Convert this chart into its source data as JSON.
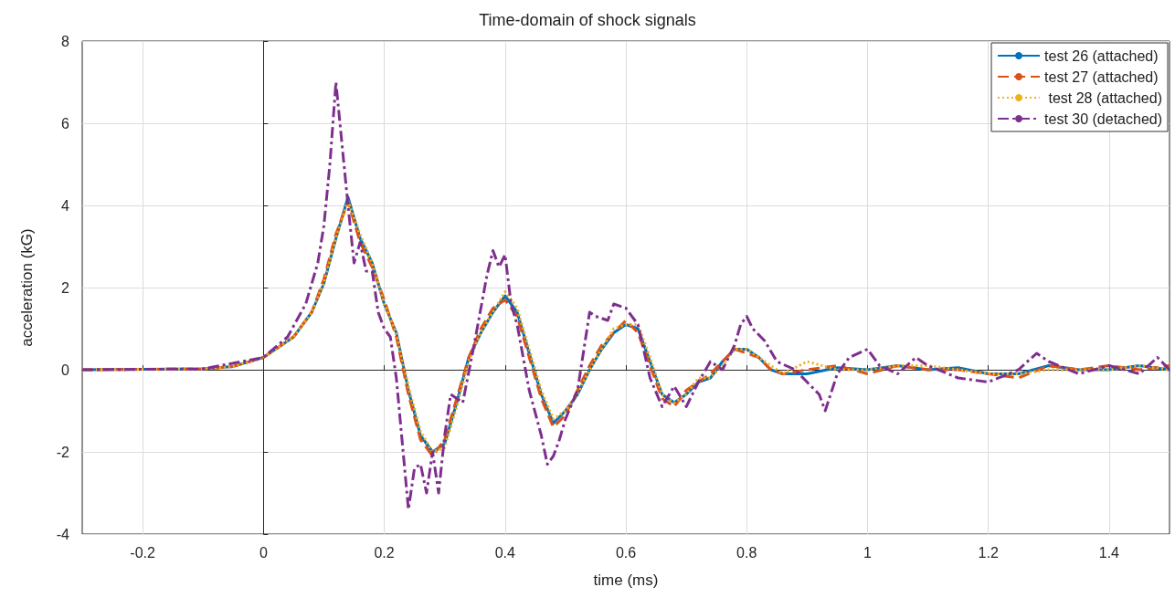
{
  "chart_data": {
    "type": "line",
    "title": "Time-domain of shock signals",
    "xlabel": "time (ms)",
    "ylabel": "acceleration (kG)",
    "xlim": [
      -0.3,
      1.5
    ],
    "xticks": [
      -0.2,
      0,
      0.2,
      0.4,
      0.6,
      0.8,
      1,
      1.2,
      1.4
    ],
    "ylim": [
      -4,
      8
    ],
    "yticks": [
      -4,
      -2,
      0,
      2,
      4,
      6,
      8
    ],
    "grid": true,
    "legend": "top right",
    "marker": "none",
    "series": [
      {
        "name": "test 26 (attached)",
        "color": "#0072bd",
        "line_style": "solid",
        "x": [
          -0.3,
          -0.1,
          -0.05,
          0,
          0.05,
          0.08,
          0.1,
          0.12,
          0.14,
          0.16,
          0.18,
          0.2,
          0.22,
          0.24,
          0.26,
          0.28,
          0.3,
          0.32,
          0.34,
          0.36,
          0.38,
          0.4,
          0.42,
          0.44,
          0.46,
          0.48,
          0.5,
          0.52,
          0.54,
          0.56,
          0.58,
          0.6,
          0.62,
          0.64,
          0.66,
          0.68,
          0.7,
          0.72,
          0.74,
          0.76,
          0.78,
          0.8,
          0.82,
          0.84,
          0.86,
          0.9,
          0.95,
          1,
          1.05,
          1.1,
          1.15,
          1.2,
          1.25,
          1.3,
          1.35,
          1.4,
          1.45,
          1.5
        ],
        "values": [
          0,
          0.02,
          0.08,
          0.3,
          0.8,
          1.4,
          2.1,
          3.2,
          4.2,
          3.2,
          2.6,
          1.6,
          0.9,
          -0.5,
          -1.6,
          -2,
          -1.8,
          -0.8,
          0.3,
          0.9,
          1.4,
          1.8,
          1.4,
          0.4,
          -0.6,
          -1.3,
          -1,
          -0.6,
          0,
          0.5,
          0.9,
          1.1,
          1,
          0.2,
          -0.6,
          -0.8,
          -0.6,
          -0.3,
          -0.2,
          0.2,
          0.5,
          0.5,
          0.3,
          0,
          -0.1,
          -0.1,
          0.05,
          0,
          0.1,
          0,
          0.05,
          -0.1,
          -0.1,
          0.1,
          0,
          0,
          0.1,
          0
        ]
      },
      {
        "name": "test 27 (attached)",
        "color": "#d95319",
        "line_style": "dashed",
        "x": [
          -0.3,
          -0.1,
          -0.05,
          0,
          0.05,
          0.08,
          0.1,
          0.12,
          0.14,
          0.16,
          0.18,
          0.2,
          0.22,
          0.24,
          0.26,
          0.28,
          0.3,
          0.32,
          0.34,
          0.36,
          0.38,
          0.4,
          0.42,
          0.44,
          0.46,
          0.48,
          0.5,
          0.52,
          0.54,
          0.56,
          0.58,
          0.6,
          0.62,
          0.64,
          0.66,
          0.68,
          0.7,
          0.72,
          0.74,
          0.76,
          0.78,
          0.8,
          0.82,
          0.84,
          0.86,
          0.9,
          0.95,
          1,
          1.05,
          1.1,
          1.15,
          1.2,
          1.25,
          1.3,
          1.35,
          1.4,
          1.45,
          1.5
        ],
        "values": [
          0,
          0.02,
          0.08,
          0.3,
          0.8,
          1.4,
          2.2,
          3.3,
          4.1,
          3.1,
          2.5,
          1.7,
          0.8,
          -0.6,
          -1.7,
          -2.1,
          -1.7,
          -0.7,
          0.3,
          1,
          1.5,
          1.7,
          1.3,
          0.3,
          -0.7,
          -1.4,
          -1.1,
          -0.5,
          0.1,
          0.6,
          0.9,
          1.2,
          0.9,
          0.1,
          -0.7,
          -0.9,
          -0.5,
          -0.3,
          -0.1,
          0.2,
          0.5,
          0.4,
          0.3,
          0,
          -0.1,
          0,
          0.1,
          -0.1,
          0.1,
          0,
          0,
          -0.1,
          -0.2,
          0.1,
          0,
          0.1,
          0,
          0.1
        ]
      },
      {
        "name": " test 28 (attached)",
        "color": "#edb120",
        "line_style": "dotted",
        "x": [
          -0.3,
          -0.1,
          -0.05,
          0,
          0.05,
          0.08,
          0.1,
          0.12,
          0.14,
          0.16,
          0.18,
          0.2,
          0.22,
          0.24,
          0.26,
          0.28,
          0.3,
          0.32,
          0.34,
          0.36,
          0.38,
          0.4,
          0.42,
          0.44,
          0.46,
          0.48,
          0.5,
          0.52,
          0.54,
          0.56,
          0.58,
          0.6,
          0.62,
          0.64,
          0.66,
          0.68,
          0.7,
          0.72,
          0.74,
          0.76,
          0.78,
          0.8,
          0.82,
          0.84,
          0.86,
          0.9,
          0.95,
          1,
          1.05,
          1.1,
          1.15,
          1.2,
          1.25,
          1.3,
          1.35,
          1.4,
          1.45,
          1.5
        ],
        "values": [
          0,
          0.02,
          0.08,
          0.3,
          0.8,
          1.4,
          2.1,
          3.2,
          4.1,
          3.3,
          2.6,
          1.6,
          0.9,
          -0.4,
          -1.5,
          -2,
          -1.9,
          -0.9,
          0.2,
          0.9,
          1.4,
          1.9,
          1.5,
          0.5,
          -0.5,
          -1.2,
          -1,
          -0.6,
          0,
          0.5,
          1,
          1.1,
          1.1,
          0.3,
          -0.6,
          -0.8,
          -0.6,
          -0.2,
          -0.2,
          0.1,
          0.5,
          0.5,
          0.3,
          0.1,
          -0.1,
          0.2,
          0,
          0,
          0.1,
          0.1,
          0,
          -0.1,
          -0.1,
          0,
          0,
          0,
          0.1,
          0
        ]
      },
      {
        "name": "test 30 (detached)",
        "color": "#7e2f8e",
        "line_style": "dashdot",
        "x": [
          -0.3,
          -0.1,
          0,
          0.04,
          0.07,
          0.09,
          0.1,
          0.11,
          0.12,
          0.13,
          0.14,
          0.15,
          0.16,
          0.17,
          0.18,
          0.19,
          0.2,
          0.21,
          0.22,
          0.23,
          0.24,
          0.25,
          0.26,
          0.27,
          0.28,
          0.29,
          0.3,
          0.31,
          0.33,
          0.35,
          0.37,
          0.38,
          0.39,
          0.4,
          0.41,
          0.42,
          0.44,
          0.46,
          0.47,
          0.48,
          0.49,
          0.5,
          0.52,
          0.54,
          0.55,
          0.57,
          0.58,
          0.6,
          0.62,
          0.64,
          0.66,
          0.68,
          0.7,
          0.72,
          0.74,
          0.76,
          0.78,
          0.79,
          0.8,
          0.81,
          0.83,
          0.85,
          0.88,
          0.9,
          0.92,
          0.93,
          0.95,
          0.97,
          1,
          1.02,
          1.05,
          1.08,
          1.1,
          1.15,
          1.2,
          1.25,
          1.28,
          1.3,
          1.35,
          1.4,
          1.45,
          1.48,
          1.5
        ],
        "values": [
          0,
          0.02,
          0.3,
          0.8,
          1.6,
          2.6,
          3.5,
          5,
          7,
          5.5,
          4,
          2.6,
          3.1,
          2.4,
          2.4,
          1.4,
          1,
          0.8,
          -0.2,
          -1.8,
          -3.4,
          -2.4,
          -2.3,
          -3,
          -2,
          -3,
          -1.6,
          -0.6,
          -0.8,
          0.7,
          2.3,
          2.9,
          2.5,
          2.8,
          1.6,
          1.1,
          -0.5,
          -1.6,
          -2.3,
          -2.1,
          -1.7,
          -1.2,
          -0.5,
          1.4,
          1.3,
          1.2,
          1.6,
          1.5,
          1.1,
          -0.2,
          -0.9,
          -0.4,
          -0.9,
          -0.3,
          0.2,
          0,
          0.6,
          1.1,
          1.3,
          1,
          0.7,
          0.2,
          0,
          -0.3,
          -0.6,
          -1,
          -0.1,
          0.3,
          0.5,
          0.1,
          -0.1,
          0.3,
          0.1,
          -0.2,
          -0.3,
          0,
          0.4,
          0.2,
          -0.1,
          0.1,
          -0.1,
          0.3,
          0
        ]
      }
    ]
  }
}
